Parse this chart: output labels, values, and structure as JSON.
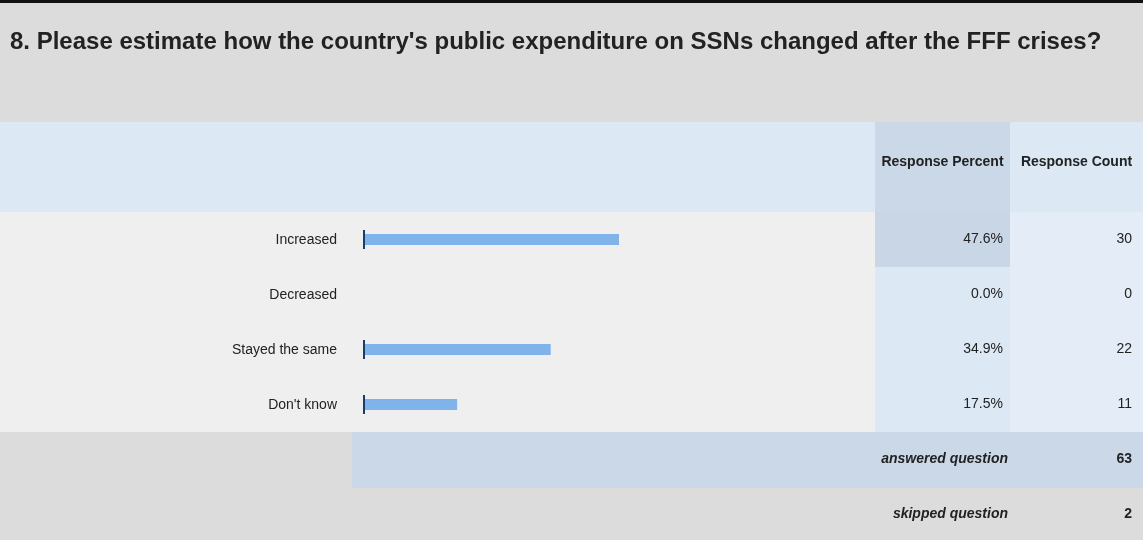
{
  "chart_data": {
    "type": "bar",
    "orientation": "horizontal",
    "title": "8. Please estimate how the country's public expenditure on SSNs changed after the FFF crises?",
    "categories": [
      "Increased",
      "Decreased",
      "Stayed the same",
      "Don't know"
    ],
    "values": [
      47.6,
      0,
      34.9,
      17.5
    ],
    "value_labels": [
      "47.6%",
      "0.0%",
      "34.9%",
      "17.5%"
    ],
    "color": "#7fb3ea",
    "tick_labels": "y",
    "annotations": [
      "Response Percent",
      "Response Count",
      "30",
      "0",
      "22",
      "11",
      "answered question",
      "63",
      "skipped question",
      "2"
    ]
  }
}
